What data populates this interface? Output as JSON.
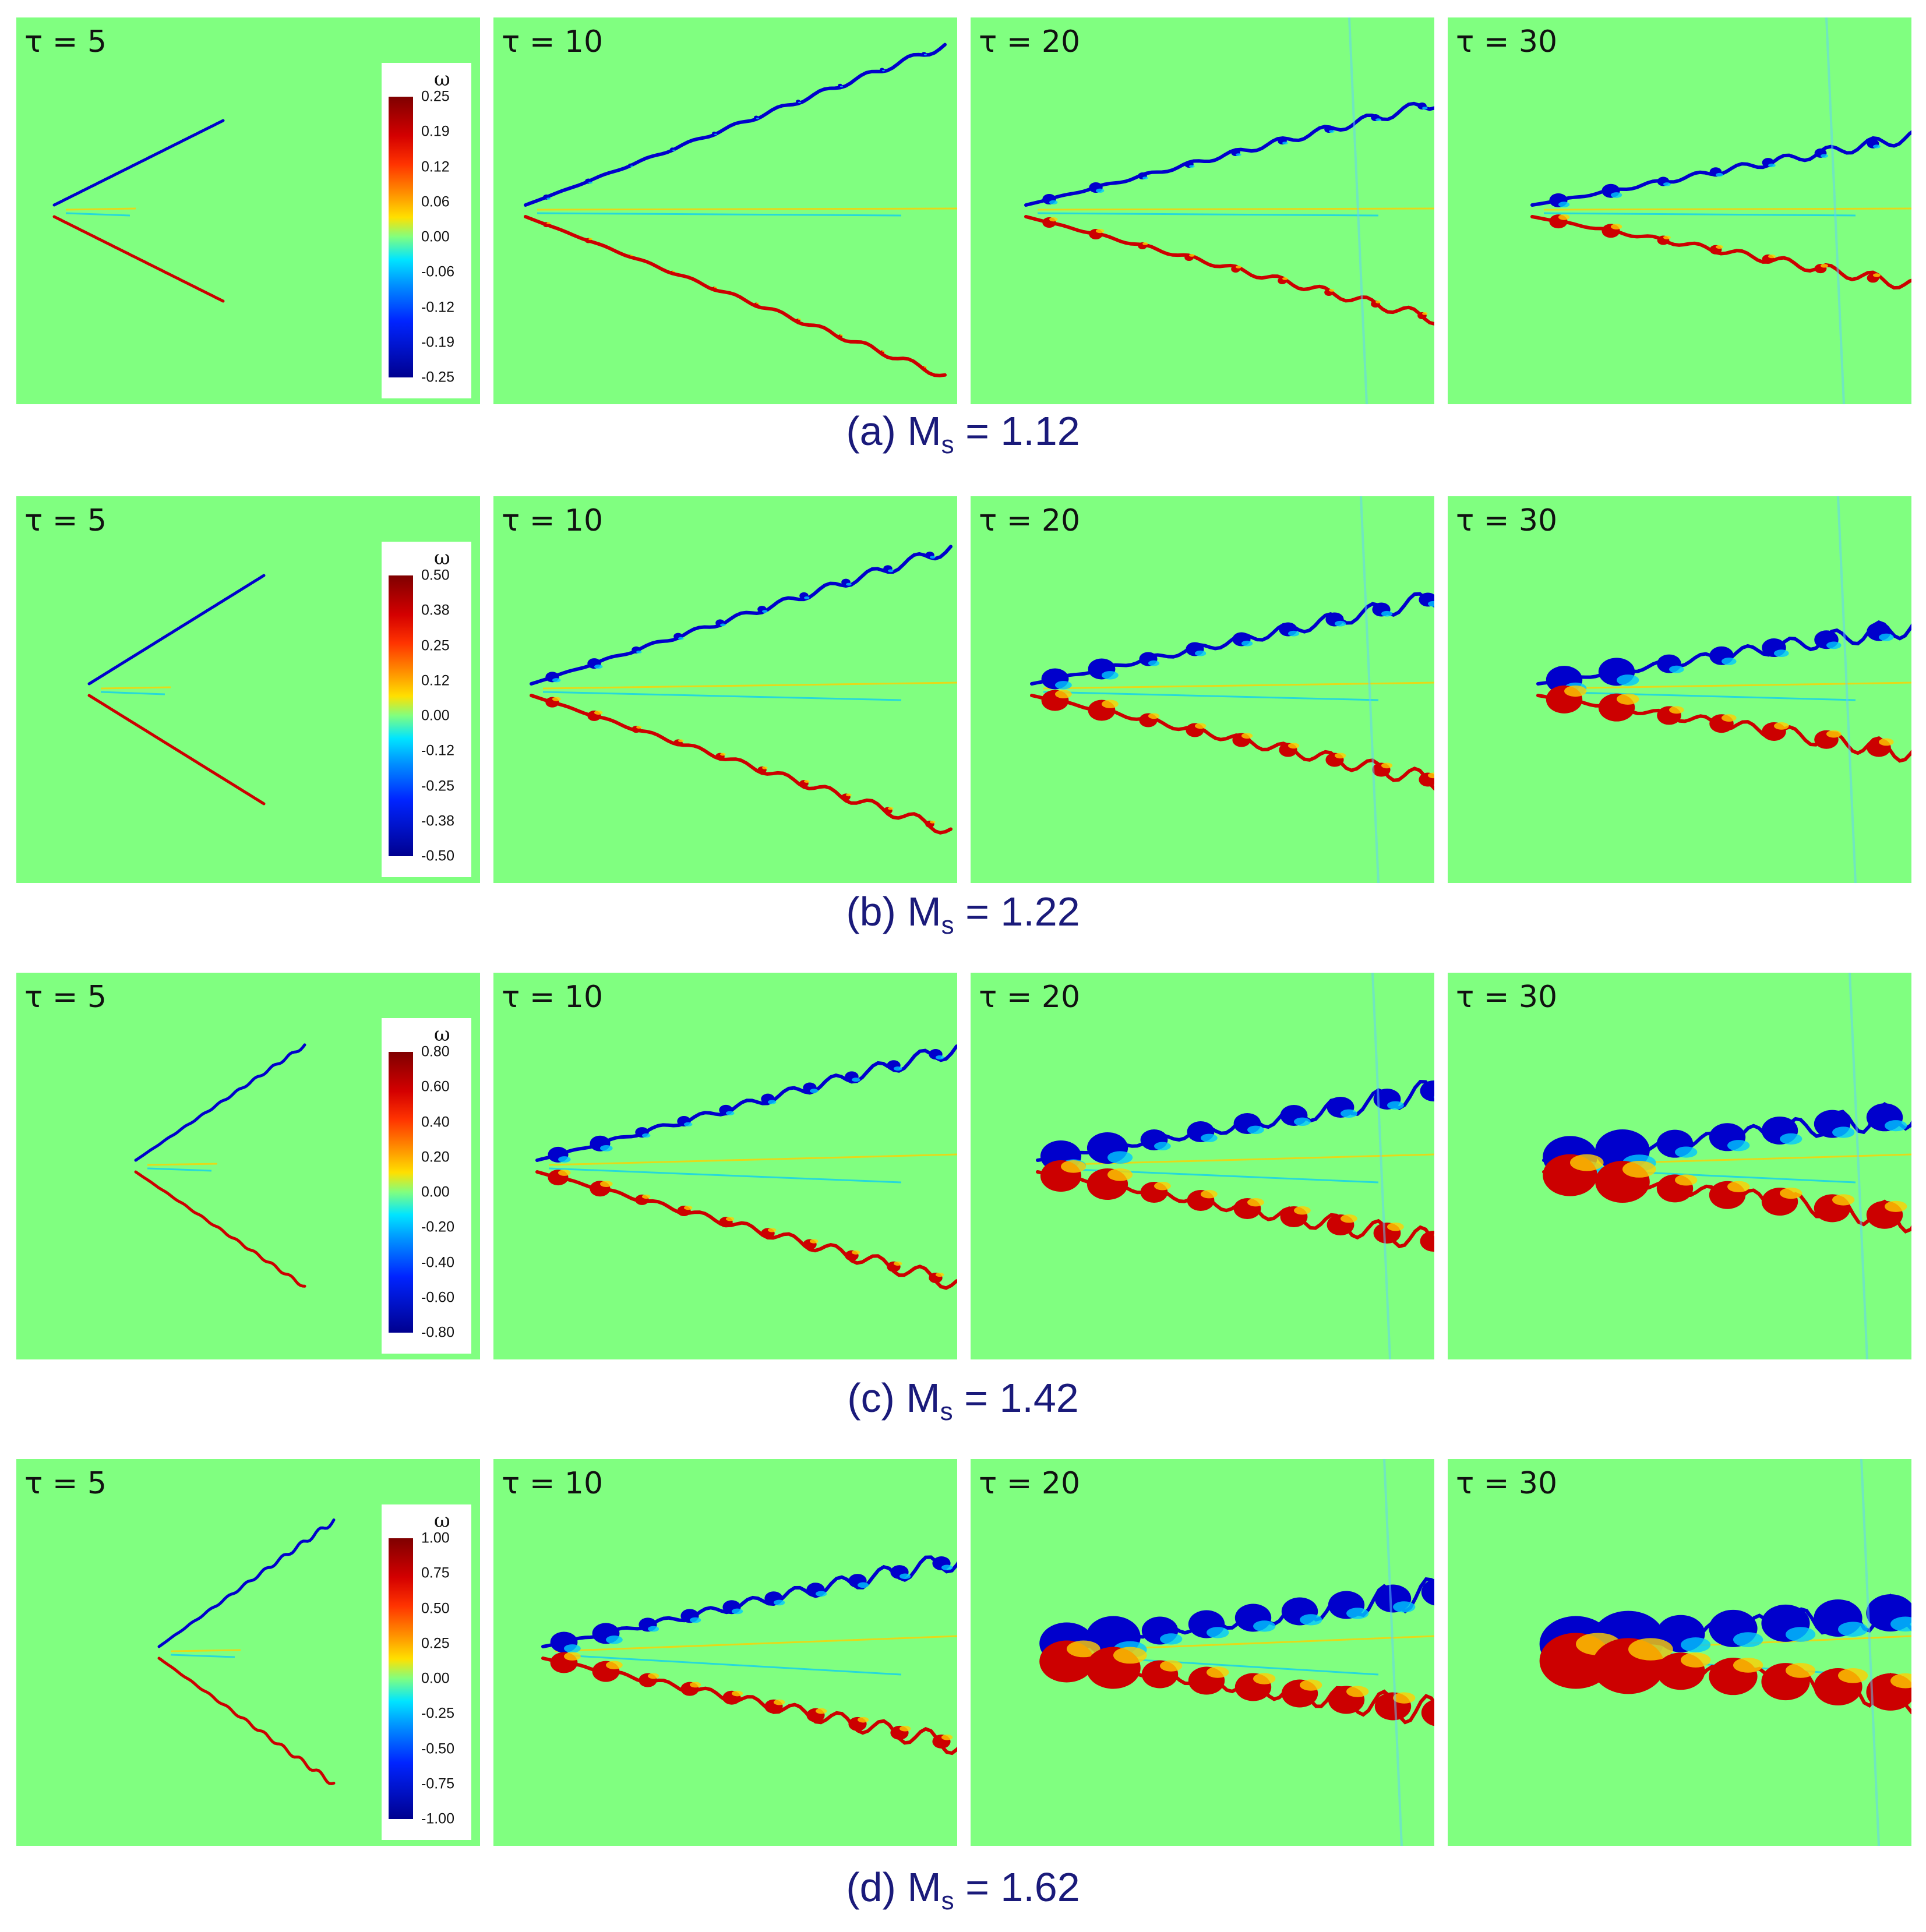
{
  "figure": {
    "rows": [
      {
        "caption_prefix": "(a) M",
        "caption_sub": "s",
        "caption_value": "= 1.12",
        "legend": {
          "symbol": "ω",
          "ticks": [
            "0.25",
            "0.19",
            "0.12",
            "0.06",
            "0.00",
            "-0.06",
            "-0.12",
            "-0.19",
            "-0.25"
          ]
        },
        "panels": [
          {
            "tau": "τ = 5"
          },
          {
            "tau": "τ = 10"
          },
          {
            "tau": "τ = 20"
          },
          {
            "tau": "τ = 30"
          }
        ]
      },
      {
        "caption_prefix": "(b) M",
        "caption_sub": "s",
        "caption_value": "= 1.22",
        "legend": {
          "symbol": "ω",
          "ticks": [
            "0.50",
            "0.38",
            "0.25",
            "0.12",
            "0.00",
            "-0.12",
            "-0.25",
            "-0.38",
            "-0.50"
          ]
        },
        "panels": [
          {
            "tau": "τ = 5"
          },
          {
            "tau": "τ = 10"
          },
          {
            "tau": "τ = 20"
          },
          {
            "tau": "τ = 30"
          }
        ]
      },
      {
        "caption_prefix": "(c) M",
        "caption_sub": "s",
        "caption_value": "= 1.42",
        "legend": {
          "symbol": "ω",
          "ticks": [
            "0.80",
            "0.60",
            "0.40",
            "0.20",
            "0.00",
            "-0.20",
            "-0.40",
            "-0.60",
            "-0.80"
          ]
        },
        "panels": [
          {
            "tau": "τ = 5"
          },
          {
            "tau": "τ = 10"
          },
          {
            "tau": "τ = 20"
          },
          {
            "tau": "τ = 30"
          }
        ]
      },
      {
        "caption_prefix": "(d) M",
        "caption_sub": "s",
        "caption_value": "= 1.62",
        "legend": {
          "symbol": "ω",
          "ticks": [
            "1.00",
            "0.75",
            "0.50",
            "0.25",
            "0.00",
            "-0.25",
            "-0.50",
            "-0.75",
            "-1.00"
          ]
        },
        "panels": [
          {
            "tau": "τ = 5"
          },
          {
            "tau": "τ = 10"
          },
          {
            "tau": "τ = 20"
          },
          {
            "tau": "τ = 30"
          }
        ]
      }
    ]
  },
  "colors": {
    "background": "#80ff80",
    "negative_vorticity": "#0000cc",
    "positive_vorticity": "#cc0000",
    "caption_text": "#1a1a7a"
  }
}
